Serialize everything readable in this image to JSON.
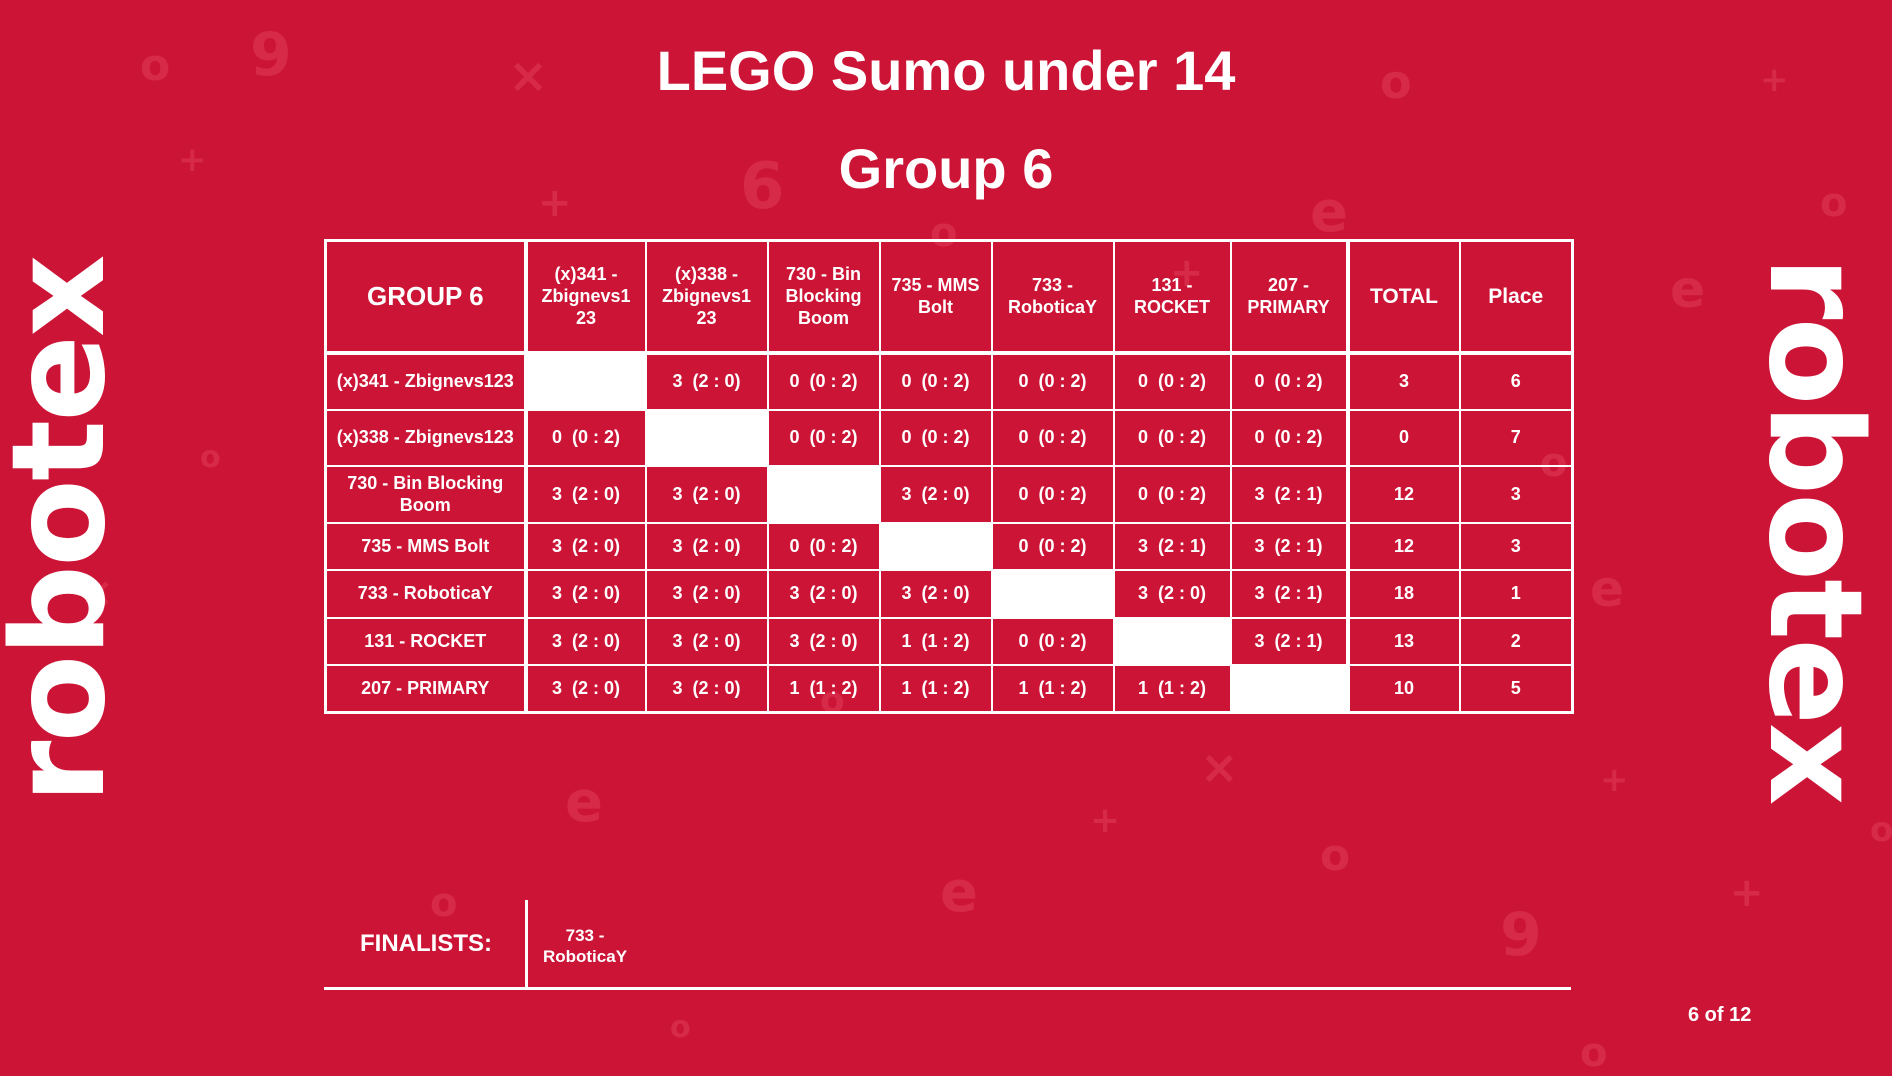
{
  "title": "LEGO Sumo under 14",
  "subtitle": "Group 6",
  "logo_text": "robotex",
  "colors": {
    "background": "#cc1536",
    "foreground": "#ffffff",
    "pattern": "#d92c4a"
  },
  "table": {
    "corner": "GROUP 6",
    "teams": [
      "(x)341 - Zbignevs123",
      "(x)338 - Zbignevs123",
      "730 - Bin Blocking Boom",
      "735 - MMS Bolt",
      "733 - RoboticaY",
      "131 - ROCKET",
      "207 - PRIMARY"
    ],
    "columns": [
      "(x)341 - Zbignevs1 23",
      "(x)338 - Zbignevs1 23",
      "730 - Bin Blocking Boom",
      "735 - MMS Bolt",
      "733 - RoboticaY",
      "131 - ROCKET",
      "207 - PRIMARY"
    ],
    "total_label": "TOTAL",
    "place_label": "Place",
    "rows": [
      {
        "name": "(x)341 - Zbignevs123",
        "results": [
          "",
          "3  (2 : 0)",
          "0  (0 : 2)",
          "0  (0 : 2)",
          "0  (0 : 2)",
          "0  (0 : 2)",
          "0  (0 : 2)"
        ],
        "total": "3",
        "place": "6"
      },
      {
        "name": "(x)338 - Zbignevs123",
        "results": [
          "0  (0 : 2)",
          "",
          "0  (0 : 2)",
          "0  (0 : 2)",
          "0  (0 : 2)",
          "0  (0 : 2)",
          "0  (0 : 2)"
        ],
        "total": "0",
        "place": "7"
      },
      {
        "name": "730 - Bin Blocking Boom",
        "results": [
          "3  (2 : 0)",
          "3  (2 : 0)",
          "",
          "3  (2 : 0)",
          "0  (0 : 2)",
          "0  (0 : 2)",
          "3  (2 : 1)"
        ],
        "total": "12",
        "place": "3"
      },
      {
        "name": "735 - MMS Bolt",
        "results": [
          "3  (2 : 0)",
          "3  (2 : 0)",
          "0  (0 : 2)",
          "",
          "0  (0 : 2)",
          "3  (2 : 1)",
          "3  (2 : 1)"
        ],
        "total": "12",
        "place": "3"
      },
      {
        "name": "733 - RoboticaY",
        "results": [
          "3  (2 : 0)",
          "3  (2 : 0)",
          "3  (2 : 0)",
          "3  (2 : 0)",
          "",
          "3  (2 : 0)",
          "3  (2 : 1)"
        ],
        "total": "18",
        "place": "1"
      },
      {
        "name": "131 - ROCKET",
        "results": [
          "3  (2 : 0)",
          "3  (2 : 0)",
          "3  (2 : 0)",
          "1  (1 : 2)",
          "0  (0 : 2)",
          "",
          "3  (2 : 1)"
        ],
        "total": "13",
        "place": "2"
      },
      {
        "name": "207 - PRIMARY",
        "results": [
          "3  (2 : 0)",
          "3  (2 : 0)",
          "1  (1 : 2)",
          "1  (1 : 2)",
          "1  (1 : 2)",
          "1  (1 : 2)",
          ""
        ],
        "total": "10",
        "place": "5"
      }
    ]
  },
  "finalists": {
    "label": "FINALISTS:",
    "names": [
      "733 - RoboticaY"
    ]
  },
  "page_indicator": "6 of 12"
}
